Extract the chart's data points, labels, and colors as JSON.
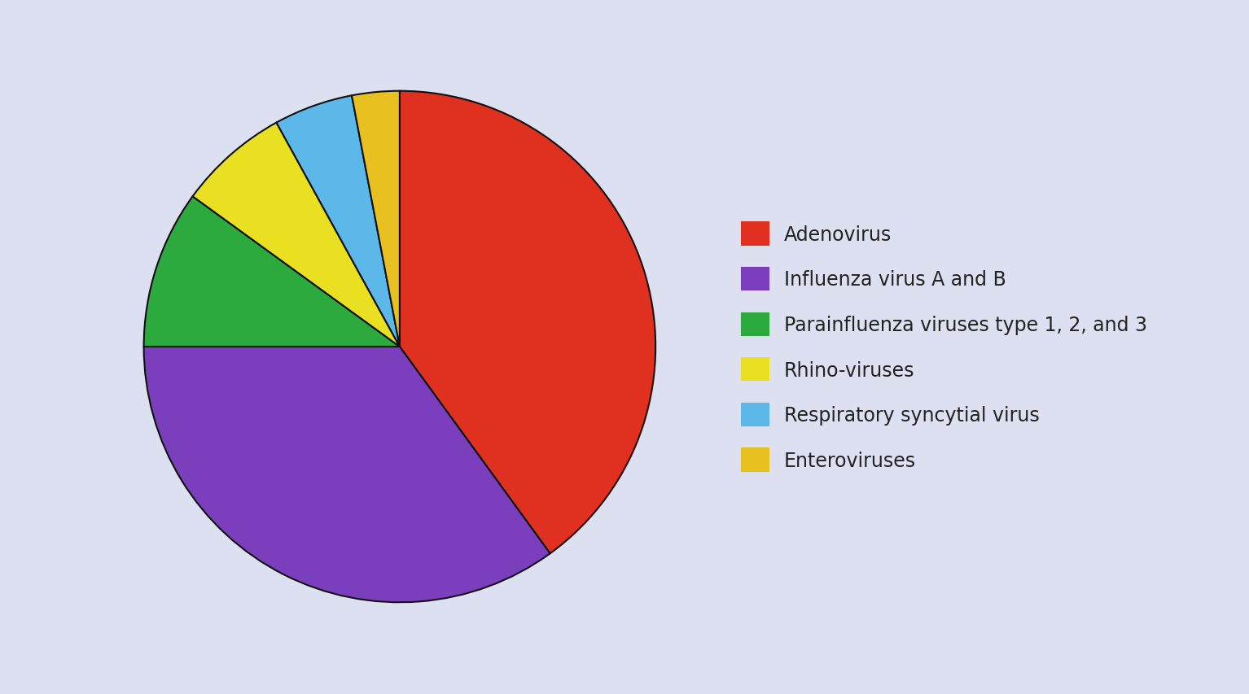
{
  "labels": [
    "Adenovirus",
    "Influenza virus A and B",
    "Parainfluenza viruses type 1, 2, and 3",
    "Rhino-viruses",
    "Respiratory syncytial virus",
    "Enteroviruses"
  ],
  "values": [
    40,
    35,
    10,
    7,
    5,
    3
  ],
  "colors": [
    "#e03020",
    "#7b3fbe",
    "#2daa3e",
    "#e8e020",
    "#5bb8e8",
    "#e8c020"
  ],
  "background_color": "#dce0f0",
  "legend_fontsize": 17,
  "startangle": 90,
  "wedge_linewidth": 1.5,
  "wedge_edgecolor": "#111111"
}
